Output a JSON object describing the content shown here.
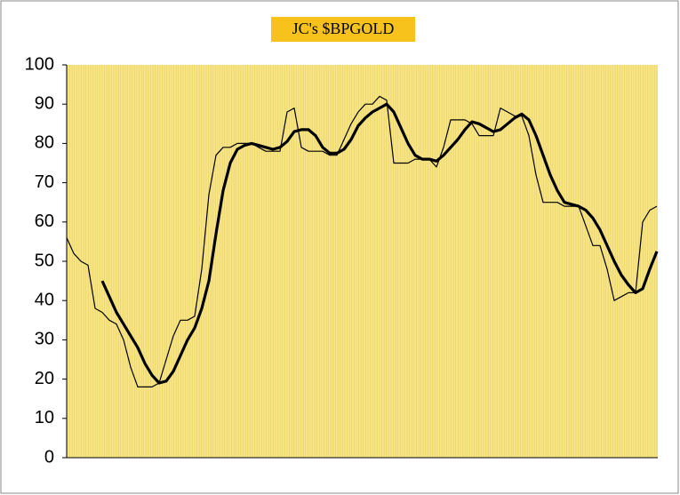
{
  "chart_data": {
    "type": "line",
    "title": "JC's $BPGOLD",
    "ylim": [
      0,
      100
    ],
    "yticks": [
      0,
      10,
      20,
      30,
      40,
      50,
      60,
      70,
      80,
      90,
      100
    ],
    "series": [
      {
        "color": "#000000",
        "values": [
          56,
          52,
          50,
          49,
          38,
          37,
          35,
          34,
          30,
          23,
          18,
          18,
          18,
          19,
          25,
          31,
          35,
          35,
          36,
          48,
          67,
          77,
          79,
          79,
          80,
          80,
          80,
          79,
          78,
          78,
          78,
          88,
          89,
          79,
          78,
          78,
          78,
          77,
          77,
          81,
          85,
          88,
          90,
          90,
          92,
          91,
          75,
          75,
          75,
          76,
          76,
          76,
          74,
          79,
          86,
          86,
          86,
          85,
          82,
          82,
          82,
          89,
          88,
          87,
          87,
          82,
          72,
          65,
          65,
          65,
          64,
          64,
          64,
          59,
          54,
          54,
          48,
          40,
          41,
          42,
          42,
          60,
          63,
          64
        ]
      },
      {
        "color": "#000000",
        "values": [
          null,
          null,
          null,
          null,
          null,
          45,
          41,
          37,
          34,
          31,
          28,
          24,
          21,
          19,
          19.5,
          22,
          26,
          30,
          33,
          38,
          45,
          57,
          68,
          75,
          78.5,
          79.5,
          80,
          79.5,
          79,
          78.5,
          79,
          80.5,
          83,
          83.5,
          83.5,
          82,
          79,
          77.5,
          77.5,
          78.5,
          81,
          84.5,
          86.5,
          88,
          89,
          90,
          88,
          84,
          80,
          77,
          76,
          76,
          75.5,
          77,
          79,
          81,
          83.5,
          85.5,
          85,
          84,
          83,
          83.5,
          85,
          86.5,
          87.5,
          86,
          82,
          77,
          72,
          68,
          65,
          64.5,
          64,
          63,
          61,
          58,
          54,
          50,
          46.5,
          44,
          42,
          43,
          48,
          52.5
        ]
      }
    ]
  }
}
